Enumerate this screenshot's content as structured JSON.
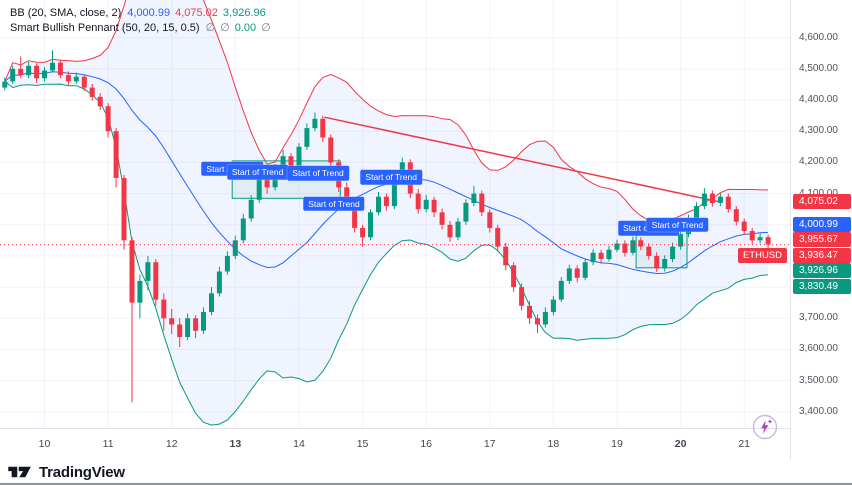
{
  "legend": {
    "indicator1": {
      "name": "BB (20, SMA, close, 2)",
      "values": [
        {
          "text": "4,000.99",
          "color": "#2962ff"
        },
        {
          "text": "4,075.02",
          "color": "#f23645"
        },
        {
          "text": "3,926.96",
          "color": "#089981"
        }
      ]
    },
    "indicator2": {
      "name": "Smart Bullish Pennant (50, 20, 15, 0.5)",
      "values": [
        {
          "text": "∅",
          "color": "#787b86"
        },
        {
          "text": "∅",
          "color": "#787b86"
        },
        {
          "text": "0.00",
          "color": "#089981"
        },
        {
          "text": "∅",
          "color": "#787b86"
        }
      ]
    }
  },
  "footer": {
    "brand": "TradingView"
  },
  "chart_data": {
    "type": "candlestick",
    "symbol": "ETHUSD",
    "timeframe_days": [
      10,
      21
    ],
    "colors": {
      "up": "#089981",
      "down": "#f23645",
      "bb_upper": "#f23645",
      "bb_mid": "#2962ff",
      "bb_lower": "#089981",
      "bb_fill": "rgba(41,98,255,0.07)",
      "grid": "#f0f3fa",
      "label_bg": "#2962ff",
      "price_line": "#f23645"
    },
    "x_axis": {
      "range": [
        9.3,
        21.72
      ],
      "labels": [
        {
          "text": "10",
          "day": 10,
          "bold": false
        },
        {
          "text": "11",
          "day": 11,
          "bold": false
        },
        {
          "text": "12",
          "day": 12,
          "bold": false
        },
        {
          "text": "13",
          "day": 13,
          "bold": true
        },
        {
          "text": "14",
          "day": 14,
          "bold": false
        },
        {
          "text": "15",
          "day": 15,
          "bold": false
        },
        {
          "text": "16",
          "day": 16,
          "bold": false
        },
        {
          "text": "17",
          "day": 17,
          "bold": false
        },
        {
          "text": "18",
          "day": 18,
          "bold": false
        },
        {
          "text": "19",
          "day": 19,
          "bold": false
        },
        {
          "text": "20",
          "day": 20,
          "bold": true
        },
        {
          "text": "21",
          "day": 21,
          "bold": false
        }
      ]
    },
    "y_axis": {
      "range": [
        3348,
        4721
      ],
      "ticks": [
        "4,600.00",
        "4,500.00",
        "4,400.00",
        "4,300.00",
        "4,200.00",
        "4,100.00",
        "4,000.00",
        "3,900.00",
        "3,800.00",
        "3,700.00",
        "3,600.00",
        "3,500.00",
        "3,400.00"
      ]
    },
    "candles_start_day": 9.375,
    "candles_day_step": 0.125,
    "candles": [
      [
        4440,
        4472,
        4430,
        4460
      ],
      [
        4460,
        4510,
        4452,
        4500
      ],
      [
        4500,
        4540,
        4470,
        4480
      ],
      [
        4480,
        4522,
        4470,
        4510
      ],
      [
        4510,
        4518,
        4455,
        4470
      ],
      [
        4470,
        4505,
        4460,
        4495
      ],
      [
        4495,
        4560,
        4488,
        4520
      ],
      [
        4520,
        4530,
        4470,
        4480
      ],
      [
        4480,
        4492,
        4448,
        4460
      ],
      [
        4460,
        4488,
        4452,
        4475
      ],
      [
        4475,
        4480,
        4430,
        4440
      ],
      [
        4440,
        4452,
        4398,
        4410
      ],
      [
        4410,
        4422,
        4368,
        4380
      ],
      [
        4380,
        4390,
        4280,
        4300
      ],
      [
        4300,
        4310,
        4120,
        4150
      ],
      [
        4150,
        4160,
        3920,
        3950
      ],
      [
        3950,
        3960,
        3430,
        3750
      ],
      [
        3750,
        3840,
        3700,
        3820
      ],
      [
        3820,
        3900,
        3790,
        3880
      ],
      [
        3880,
        3890,
        3740,
        3760
      ],
      [
        3760,
        3780,
        3660,
        3700
      ],
      [
        3700,
        3730,
        3650,
        3680
      ],
      [
        3680,
        3700,
        3608,
        3640
      ],
      [
        3640,
        3715,
        3630,
        3700
      ],
      [
        3700,
        3710,
        3636,
        3660
      ],
      [
        3660,
        3735,
        3650,
        3720
      ],
      [
        3720,
        3800,
        3710,
        3780
      ],
      [
        3780,
        3865,
        3770,
        3850
      ],
      [
        3850,
        3915,
        3840,
        3900
      ],
      [
        3900,
        3965,
        3890,
        3950
      ],
      [
        3950,
        4035,
        3940,
        4020
      ],
      [
        4020,
        4095,
        4010,
        4080
      ],
      [
        4080,
        4165,
        4070,
        4150
      ],
      [
        4150,
        4160,
        4100,
        4120
      ],
      [
        4120,
        4195,
        4110,
        4180
      ],
      [
        4180,
        4240,
        4170,
        4220
      ],
      [
        4220,
        4230,
        4175,
        4190
      ],
      [
        4190,
        4262,
        4182,
        4250
      ],
      [
        4250,
        4325,
        4240,
        4310
      ],
      [
        4310,
        4360,
        4300,
        4340
      ],
      [
        4340,
        4350,
        4265,
        4280
      ],
      [
        4280,
        4290,
        4185,
        4200
      ],
      [
        4200,
        4210,
        4105,
        4120
      ],
      [
        4120,
        4135,
        4045,
        4060
      ],
      [
        4060,
        4075,
        3975,
        3990
      ],
      [
        3990,
        4000,
        3930,
        3960
      ],
      [
        3960,
        4050,
        3950,
        4040
      ],
      [
        4040,
        4105,
        4030,
        4090
      ],
      [
        4090,
        4100,
        4045,
        4060
      ],
      [
        4060,
        4160,
        4050,
        4150
      ],
      [
        4150,
        4215,
        4140,
        4200
      ],
      [
        4200,
        4210,
        4085,
        4100
      ],
      [
        4100,
        4115,
        4035,
        4050
      ],
      [
        4050,
        4095,
        4040,
        4080
      ],
      [
        4080,
        4090,
        4025,
        4040
      ],
      [
        4040,
        4052,
        3985,
        4000
      ],
      [
        4000,
        4012,
        3945,
        3960
      ],
      [
        3960,
        4022,
        3950,
        4010
      ],
      [
        4010,
        4082,
        4000,
        4070
      ],
      [
        4070,
        4125,
        4060,
        4100
      ],
      [
        4100,
        4110,
        4028,
        4040
      ],
      [
        4040,
        4050,
        3975,
        3990
      ],
      [
        3990,
        4000,
        3915,
        3930
      ],
      [
        3930,
        3942,
        3855,
        3870
      ],
      [
        3870,
        3880,
        3785,
        3800
      ],
      [
        3800,
        3812,
        3725,
        3740
      ],
      [
        3740,
        3755,
        3682,
        3700
      ],
      [
        3700,
        3712,
        3652,
        3680
      ],
      [
        3680,
        3735,
        3670,
        3720
      ],
      [
        3720,
        3772,
        3710,
        3760
      ],
      [
        3760,
        3832,
        3752,
        3820
      ],
      [
        3820,
        3872,
        3810,
        3860
      ],
      [
        3860,
        3870,
        3815,
        3830
      ],
      [
        3830,
        3892,
        3822,
        3880
      ],
      [
        3880,
        3922,
        3870,
        3910
      ],
      [
        3910,
        3920,
        3875,
        3890
      ],
      [
        3890,
        3932,
        3882,
        3920
      ],
      [
        3920,
        3952,
        3912,
        3940
      ],
      [
        3940,
        3950,
        3898,
        3910
      ],
      [
        3910,
        3962,
        3902,
        3950
      ],
      [
        3950,
        3960,
        3918,
        3930
      ],
      [
        3930,
        3940,
        3888,
        3900
      ],
      [
        3900,
        3912,
        3848,
        3860
      ],
      [
        3860,
        3902,
        3850,
        3890
      ],
      [
        3890,
        3942,
        3880,
        3930
      ],
      [
        3930,
        3982,
        3920,
        3970
      ],
      [
        3970,
        4032,
        3960,
        4020
      ],
      [
        4020,
        4072,
        4010,
        4060
      ],
      [
        4060,
        4118,
        4050,
        4100
      ],
      [
        4100,
        4110,
        4058,
        4070
      ],
      [
        4070,
        4102,
        4060,
        4090
      ],
      [
        4090,
        4100,
        4038,
        4050
      ],
      [
        4050,
        4060,
        3998,
        4010
      ],
      [
        4010,
        4020,
        3968,
        3980
      ],
      [
        3980,
        3990,
        3938,
        3950
      ],
      [
        3950,
        3972,
        3940,
        3960
      ],
      [
        3960,
        3968,
        3920,
        3936.47
      ]
    ],
    "bollinger": {
      "period": 20,
      "mult": 2,
      "current_mid": 4000.99,
      "current_upper": 4075.02,
      "current_lower": 3926.96
    },
    "trendline": {
      "from": {
        "day": 14.4,
        "price": 4345
      },
      "to": {
        "day": 20.65,
        "price": 4072
      },
      "color": "#f23645"
    },
    "pennant_boxes": [
      {
        "day1": 12.95,
        "day2": 14.65,
        "price1": 4085,
        "price2": 4205
      },
      {
        "day1": 19.3,
        "day2": 20.1,
        "price1": 3862,
        "price2": 3988
      }
    ],
    "trend_labels": [
      {
        "day": 12.95,
        "price": 4180,
        "text": "Start of Trend"
      },
      {
        "day": 13.35,
        "price": 4168,
        "text": "Start of Trend"
      },
      {
        "day": 14.3,
        "price": 4165,
        "text": "Start of Trend"
      },
      {
        "day": 14.55,
        "price": 4068,
        "text": "Start of Trend"
      },
      {
        "day": 15.45,
        "price": 4152,
        "text": "Start of Trend"
      },
      {
        "day": 19.5,
        "price": 3988,
        "text": "Start of Trend"
      },
      {
        "day": 19.95,
        "price": 4000,
        "text": "Start of Trend"
      }
    ],
    "price_line": {
      "price": 3936.47
    },
    "badges": [
      {
        "text": "4,075.02",
        "price": 4075.02,
        "color": "#f23645"
      },
      {
        "text": "4,000.99",
        "price": 4000.99,
        "color": "#2962ff"
      },
      {
        "text": "3,955.67",
        "price": 3955.67,
        "color": "#f23645"
      },
      {
        "text": "3,936.47",
        "price": 3936.47,
        "color": "#f23645",
        "tag": "ETHUSD"
      },
      {
        "text": "3,926.96",
        "price": 3926.96,
        "color": "#089981"
      },
      {
        "text": "3,830.49",
        "price": 3830.49,
        "color": "#089981"
      }
    ]
  }
}
